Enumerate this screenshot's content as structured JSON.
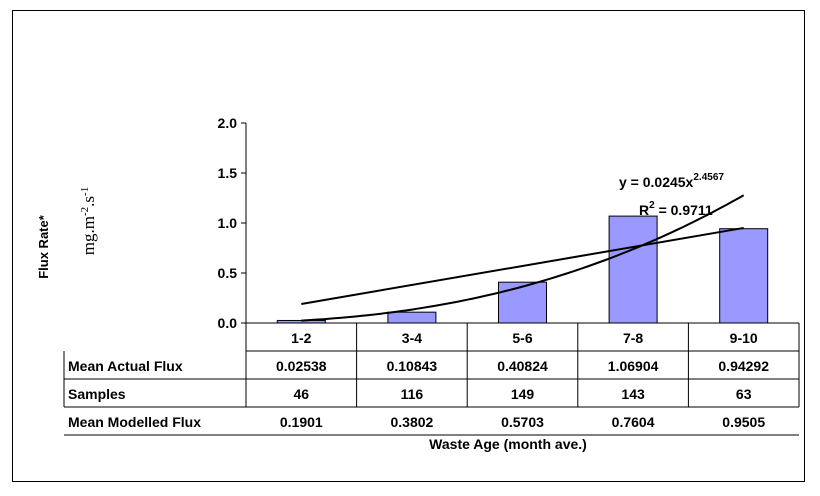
{
  "chart_data": {
    "type": "bar",
    "categories": [
      "1-2",
      "3-4",
      "5-6",
      "7-8",
      "9-10"
    ],
    "series": [
      {
        "name": "Mean Actual Flux",
        "values": [
          0.02538,
          0.10843,
          0.40824,
          1.06904,
          0.94292
        ],
        "color": "#9999ff"
      },
      {
        "name": "Mean Modelled Flux",
        "values": [
          0.1901,
          0.3802,
          0.5703,
          0.7604,
          0.9505
        ],
        "color": "#000000"
      }
    ],
    "power_trend": {
      "a": 0.0245,
      "b": 2.4567,
      "equation_label": "y = 0.0245x",
      "exponent_label": "2.4567",
      "r2_label": "R",
      "r2_sup": "2",
      "r2_value": " = 0.9711"
    },
    "ylim": [
      0,
      2.0
    ],
    "yticks": [
      "0.0",
      "0.5",
      "1.0",
      "1.5",
      "2.0"
    ],
    "ylabel_bold": "Flux Rate*",
    "ylabel_units": {
      "base1": "mg.m",
      "sup1": "-2",
      "base2": ".s",
      "sup2": "-1"
    },
    "xlabel": "Waste Age (month ave.)",
    "grid": false,
    "legend": "data-table",
    "table": {
      "rows": [
        {
          "label": "Mean Actual Flux",
          "cells": [
            "0.02538",
            "0.10843",
            "0.40824",
            "1.06904",
            "0.94292"
          ]
        },
        {
          "label": "Samples",
          "cells": [
            "46",
            "116",
            "149",
            "143",
            "63"
          ]
        },
        {
          "label": "Mean Modelled Flux",
          "cells": [
            "0.1901",
            "0.3802",
            "0.5703",
            "0.7604",
            "0.9505"
          ]
        }
      ]
    }
  }
}
